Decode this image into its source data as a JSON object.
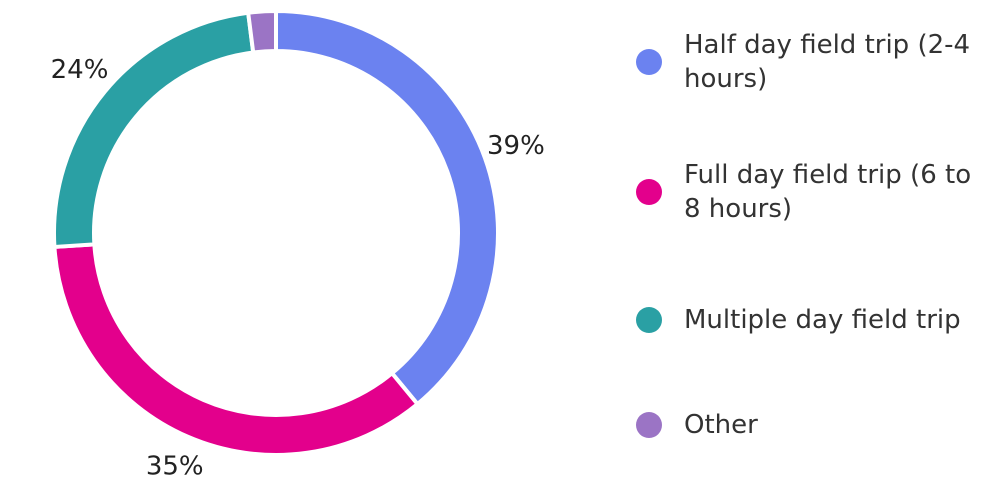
{
  "chart_data": {
    "type": "donut",
    "categories": [
      "Half day field trip (2-4 hours)",
      "Full day field trip (6 to 8 hours)",
      "Multiple day field trip",
      "Other"
    ],
    "values": [
      39,
      35,
      24,
      2
    ],
    "value_labels": [
      "39%",
      "35%",
      "24%",
      null
    ],
    "colors": [
      "#6b82f0",
      "#e3008c",
      "#2aa0a4",
      "#9b74c5"
    ],
    "legend": "right"
  }
}
